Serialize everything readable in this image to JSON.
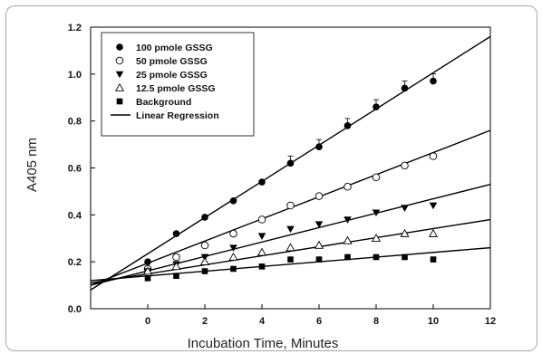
{
  "chart_data": {
    "type": "scatter",
    "xlabel": "Incubation Time, Minutes",
    "ylabel": "A405 nm",
    "xlim": [
      -2,
      12
    ],
    "ylim": [
      0,
      1.2
    ],
    "x_ticks": [
      0,
      2,
      4,
      6,
      8,
      10,
      12
    ],
    "y_ticks": [
      "0.0",
      "0.2",
      "0.4",
      "0.6",
      "0.8",
      "1.0",
      "1.2"
    ],
    "grid": false,
    "legend_position": "top-left",
    "x": [
      0,
      1,
      2,
      3,
      4,
      5,
      6,
      7,
      8,
      9,
      10
    ],
    "series": [
      {
        "name": "100 pmole GSSG",
        "marker": "filled-circle",
        "values": [
          0.2,
          0.32,
          0.39,
          0.46,
          0.54,
          0.62,
          0.69,
          0.78,
          0.86,
          0.94,
          0.97
        ],
        "regression": [
          0.08,
          1.16
        ]
      },
      {
        "name": "50 pmole GSSG",
        "marker": "open-circle",
        "values": [
          0.17,
          0.22,
          0.27,
          0.32,
          0.38,
          0.44,
          0.48,
          0.52,
          0.56,
          0.61,
          0.65
        ],
        "regression": [
          0.1,
          0.76
        ]
      },
      {
        "name": "25 pmole GSSG",
        "marker": "filled-triangle-down",
        "values": [
          0.16,
          0.19,
          0.22,
          0.26,
          0.31,
          0.34,
          0.36,
          0.38,
          0.41,
          0.43,
          0.44
        ],
        "regression": [
          0.1,
          0.53
        ]
      },
      {
        "name": "12.5 pmole GSSG",
        "marker": "open-triangle-up",
        "values": [
          0.16,
          0.18,
          0.2,
          0.22,
          0.24,
          0.26,
          0.27,
          0.29,
          0.3,
          0.32,
          0.32
        ],
        "regression": [
          0.11,
          0.38
        ]
      },
      {
        "name": "Background",
        "marker": "filled-square",
        "values": [
          0.13,
          0.14,
          0.16,
          0.17,
          0.18,
          0.21,
          0.21,
          0.22,
          0.22,
          0.22,
          0.21
        ],
        "regression": [
          0.12,
          0.26
        ]
      }
    ],
    "regression_label": "Linear Regression",
    "regression_x_range": [
      -2,
      12
    ]
  }
}
